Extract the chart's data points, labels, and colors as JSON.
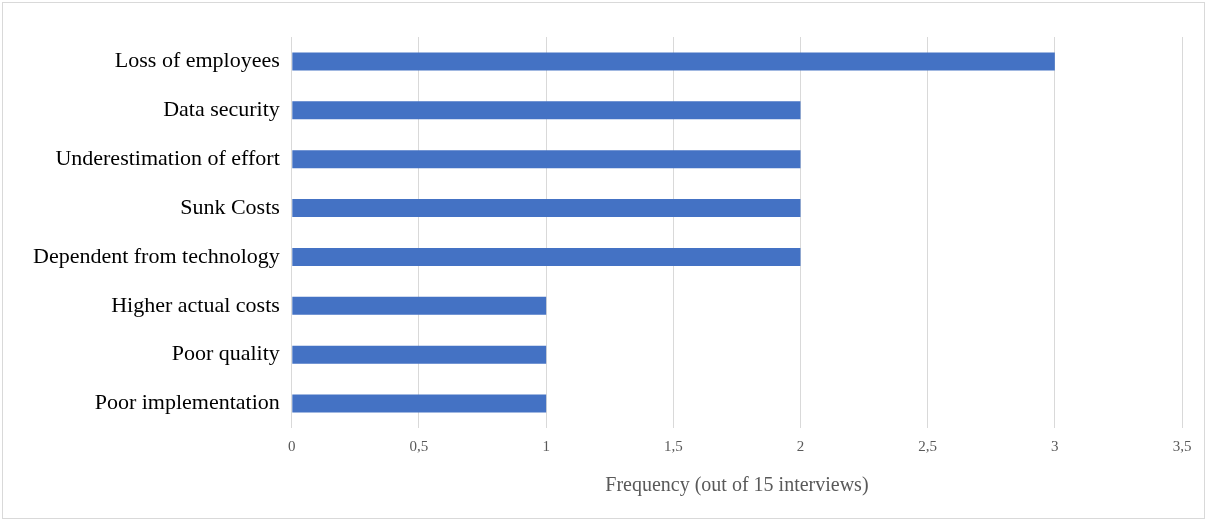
{
  "chart_data": {
    "type": "bar",
    "orientation": "horizontal",
    "xlabel": "Frequency (out of 15 interviews)",
    "categories": [
      "Loss of employees",
      "Data security",
      "Underestimation of effort",
      "Sunk Costs",
      "Dependent from technology",
      "Higher actual costs",
      "Poor quality",
      "Poor implementation"
    ],
    "values": [
      3,
      2,
      2,
      2,
      2,
      1,
      1,
      1
    ],
    "color": "#4472c4",
    "xlim": [
      0,
      3.5
    ],
    "xticks": [
      0,
      {
        "value": 0.5,
        "label": "0,5"
      },
      1,
      {
        "value": 1.5,
        "label": "1,5"
      },
      2,
      {
        "value": 2.5,
        "label": "2,5"
      },
      3,
      {
        "value": 3.5,
        "label": "3,5"
      }
    ],
    "grid": "x",
    "legend": false
  }
}
